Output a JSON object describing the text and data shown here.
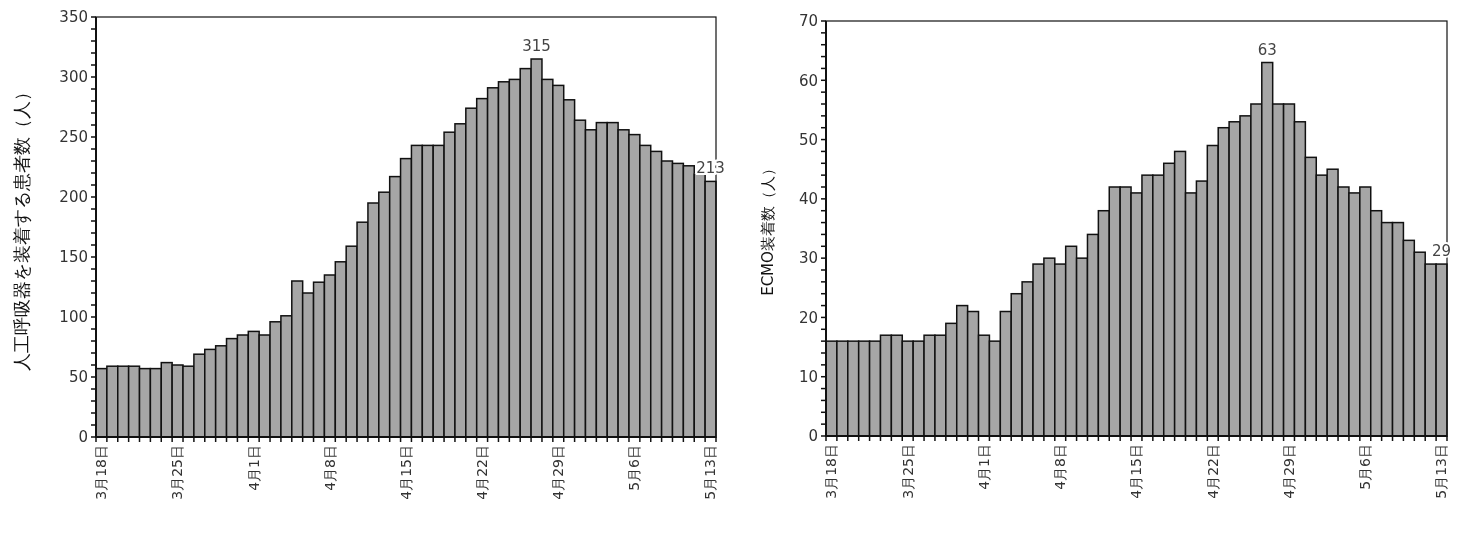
{
  "chart_data": [
    {
      "type": "bar",
      "ylabel": "人工呼吸器を装着する患者数（人）",
      "categories": [
        "3月18日",
        null,
        null,
        null,
        null,
        null,
        null,
        "3月25日",
        null,
        null,
        null,
        null,
        null,
        null,
        "4月1日",
        null,
        null,
        null,
        null,
        null,
        null,
        "4月8日",
        null,
        null,
        null,
        null,
        null,
        null,
        "4月15日",
        null,
        null,
        null,
        null,
        null,
        null,
        "4月22日",
        null,
        null,
        null,
        null,
        null,
        null,
        "4月29日",
        null,
        null,
        null,
        null,
        null,
        null,
        "5月6日",
        null,
        null,
        null,
        null,
        null,
        null,
        "5月13日"
      ],
      "values": [
        57,
        59,
        59,
        59,
        57,
        57,
        62,
        60,
        59,
        69,
        73,
        76,
        82,
        85,
        88,
        85,
        96,
        101,
        130,
        120,
        129,
        135,
        146,
        159,
        179,
        195,
        204,
        217,
        232,
        243,
        243,
        243,
        254,
        261,
        274,
        282,
        291,
        296,
        298,
        307,
        315,
        298,
        293,
        281,
        264,
        256,
        262,
        262,
        256,
        252,
        243,
        238,
        230,
        228,
        226,
        219,
        213
      ],
      "value_labels": [
        null,
        null,
        null,
        null,
        null,
        null,
        null,
        null,
        null,
        null,
        null,
        null,
        null,
        null,
        null,
        null,
        null,
        null,
        null,
        null,
        null,
        null,
        null,
        null,
        null,
        null,
        null,
        null,
        null,
        null,
        null,
        null,
        null,
        null,
        null,
        null,
        null,
        null,
        null,
        null,
        "315",
        null,
        null,
        null,
        null,
        null,
        null,
        null,
        null,
        null,
        null,
        null,
        null,
        null,
        null,
        null,
        "213"
      ],
      "color": "#a6a6a6",
      "ylim": [
        0,
        350
      ],
      "yticks": [
        0,
        {
          "value": 10,
          "label": null
        },
        {
          "value": 20,
          "label": null
        },
        {
          "value": 30,
          "label": null
        },
        {
          "value": 40,
          "label": null
        },
        50,
        {
          "value": 60,
          "label": null
        },
        {
          "value": 70,
          "label": null
        },
        {
          "value": 80,
          "label": null
        },
        {
          "value": 90,
          "label": null
        },
        100,
        {
          "value": 110,
          "label": null
        },
        {
          "value": 120,
          "label": null
        },
        {
          "value": 130,
          "label": null
        },
        {
          "value": 140,
          "label": null
        },
        150,
        {
          "value": 160,
          "label": null
        },
        {
          "value": 170,
          "label": null
        },
        {
          "value": 180,
          "label": null
        },
        {
          "value": 190,
          "label": null
        },
        200,
        {
          "value": 210,
          "label": null
        },
        {
          "value": 220,
          "label": null
        },
        {
          "value": 230,
          "label": null
        },
        {
          "value": 240,
          "label": null
        },
        250,
        {
          "value": 260,
          "label": null
        },
        {
          "value": 270,
          "label": null
        },
        {
          "value": 280,
          "label": null
        },
        {
          "value": 290,
          "label": null
        },
        300,
        {
          "value": 310,
          "label": null
        },
        {
          "value": 320,
          "label": null
        },
        {
          "value": 330,
          "label": null
        },
        {
          "value": 340,
          "label": null
        },
        350
      ]
    },
    {
      "type": "bar",
      "ylabel": "ECMO装着数（人）",
      "categories": [
        "3月18日",
        null,
        null,
        null,
        null,
        null,
        null,
        "3月25日",
        null,
        null,
        null,
        null,
        null,
        null,
        "4月1日",
        null,
        null,
        null,
        null,
        null,
        null,
        "4月8日",
        null,
        null,
        null,
        null,
        null,
        null,
        "4月15日",
        null,
        null,
        null,
        null,
        null,
        null,
        "4月22日",
        null,
        null,
        null,
        null,
        null,
        null,
        "4月29日",
        null,
        null,
        null,
        null,
        null,
        null,
        "5月6日",
        null,
        null,
        null,
        null,
        null,
        null,
        "5月13日"
      ],
      "values": [
        16,
        16,
        16,
        16,
        16,
        17,
        17,
        16,
        16,
        17,
        17,
        19,
        22,
        21,
        17,
        16,
        21,
        24,
        26,
        29,
        30,
        29,
        32,
        30,
        34,
        38,
        42,
        42,
        41,
        44,
        44,
        46,
        48,
        41,
        43,
        49,
        52,
        53,
        54,
        56,
        63,
        56,
        56,
        53,
        47,
        44,
        45,
        42,
        41,
        42,
        38,
        36,
        36,
        33,
        31,
        29,
        29
      ],
      "value_labels": [
        null,
        null,
        null,
        null,
        null,
        null,
        null,
        null,
        null,
        null,
        null,
        null,
        null,
        null,
        null,
        null,
        null,
        null,
        null,
        null,
        null,
        null,
        null,
        null,
        null,
        null,
        null,
        null,
        null,
        null,
        null,
        null,
        null,
        null,
        null,
        null,
        null,
        null,
        null,
        null,
        "63",
        null,
        null,
        null,
        null,
        null,
        null,
        null,
        null,
        null,
        null,
        null,
        null,
        null,
        null,
        null,
        "29"
      ],
      "color": "#a6a6a6",
      "ylim": [
        0,
        70
      ],
      "yticks": [
        0,
        {
          "value": 2,
          "label": null
        },
        {
          "value": 4,
          "label": null
        },
        {
          "value": 6,
          "label": null
        },
        {
          "value": 8,
          "label": null
        },
        10,
        {
          "value": 12,
          "label": null
        },
        {
          "value": 14,
          "label": null
        },
        {
          "value": 16,
          "label": null
        },
        {
          "value": 18,
          "label": null
        },
        20,
        {
          "value": 22,
          "label": null
        },
        {
          "value": 24,
          "label": null
        },
        {
          "value": 26,
          "label": null
        },
        {
          "value": 28,
          "label": null
        },
        30,
        {
          "value": 32,
          "label": null
        },
        {
          "value": 34,
          "label": null
        },
        {
          "value": 36,
          "label": null
        },
        {
          "value": 38,
          "label": null
        },
        40,
        {
          "value": 42,
          "label": null
        },
        {
          "value": 44,
          "label": null
        },
        {
          "value": 46,
          "label": null
        },
        {
          "value": 48,
          "label": null
        },
        50,
        {
          "value": 52,
          "label": null
        },
        {
          "value": 54,
          "label": null
        },
        {
          "value": 56,
          "label": null
        },
        {
          "value": 58,
          "label": null
        },
        60,
        {
          "value": 62,
          "label": null
        },
        {
          "value": 64,
          "label": null
        },
        {
          "value": 66,
          "label": null
        },
        {
          "value": 68,
          "label": null
        },
        70
      ]
    }
  ]
}
